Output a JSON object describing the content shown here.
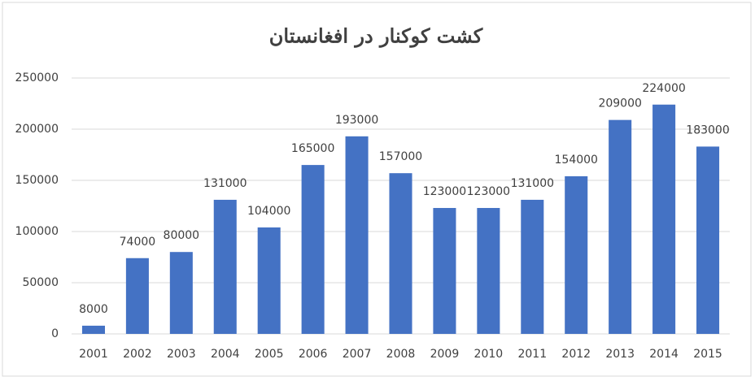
{
  "chart_data": {
    "type": "bar",
    "title": "کشت کوکنار در افغانستان",
    "categories": [
      "2001",
      "2002",
      "2003",
      "2004",
      "2005",
      "2006",
      "2007",
      "2008",
      "2009",
      "2010",
      "2011",
      "2012",
      "2013",
      "2014",
      "2015"
    ],
    "values": [
      8000,
      74000,
      80000,
      131000,
      104000,
      165000,
      193000,
      157000,
      123000,
      123000,
      131000,
      154000,
      209000,
      224000,
      183000
    ],
    "color": "#4472c4",
    "ylim": [
      0,
      250000
    ],
    "yticks": [
      0,
      50000,
      100000,
      150000,
      200000,
      250000
    ],
    "grid": true
  }
}
